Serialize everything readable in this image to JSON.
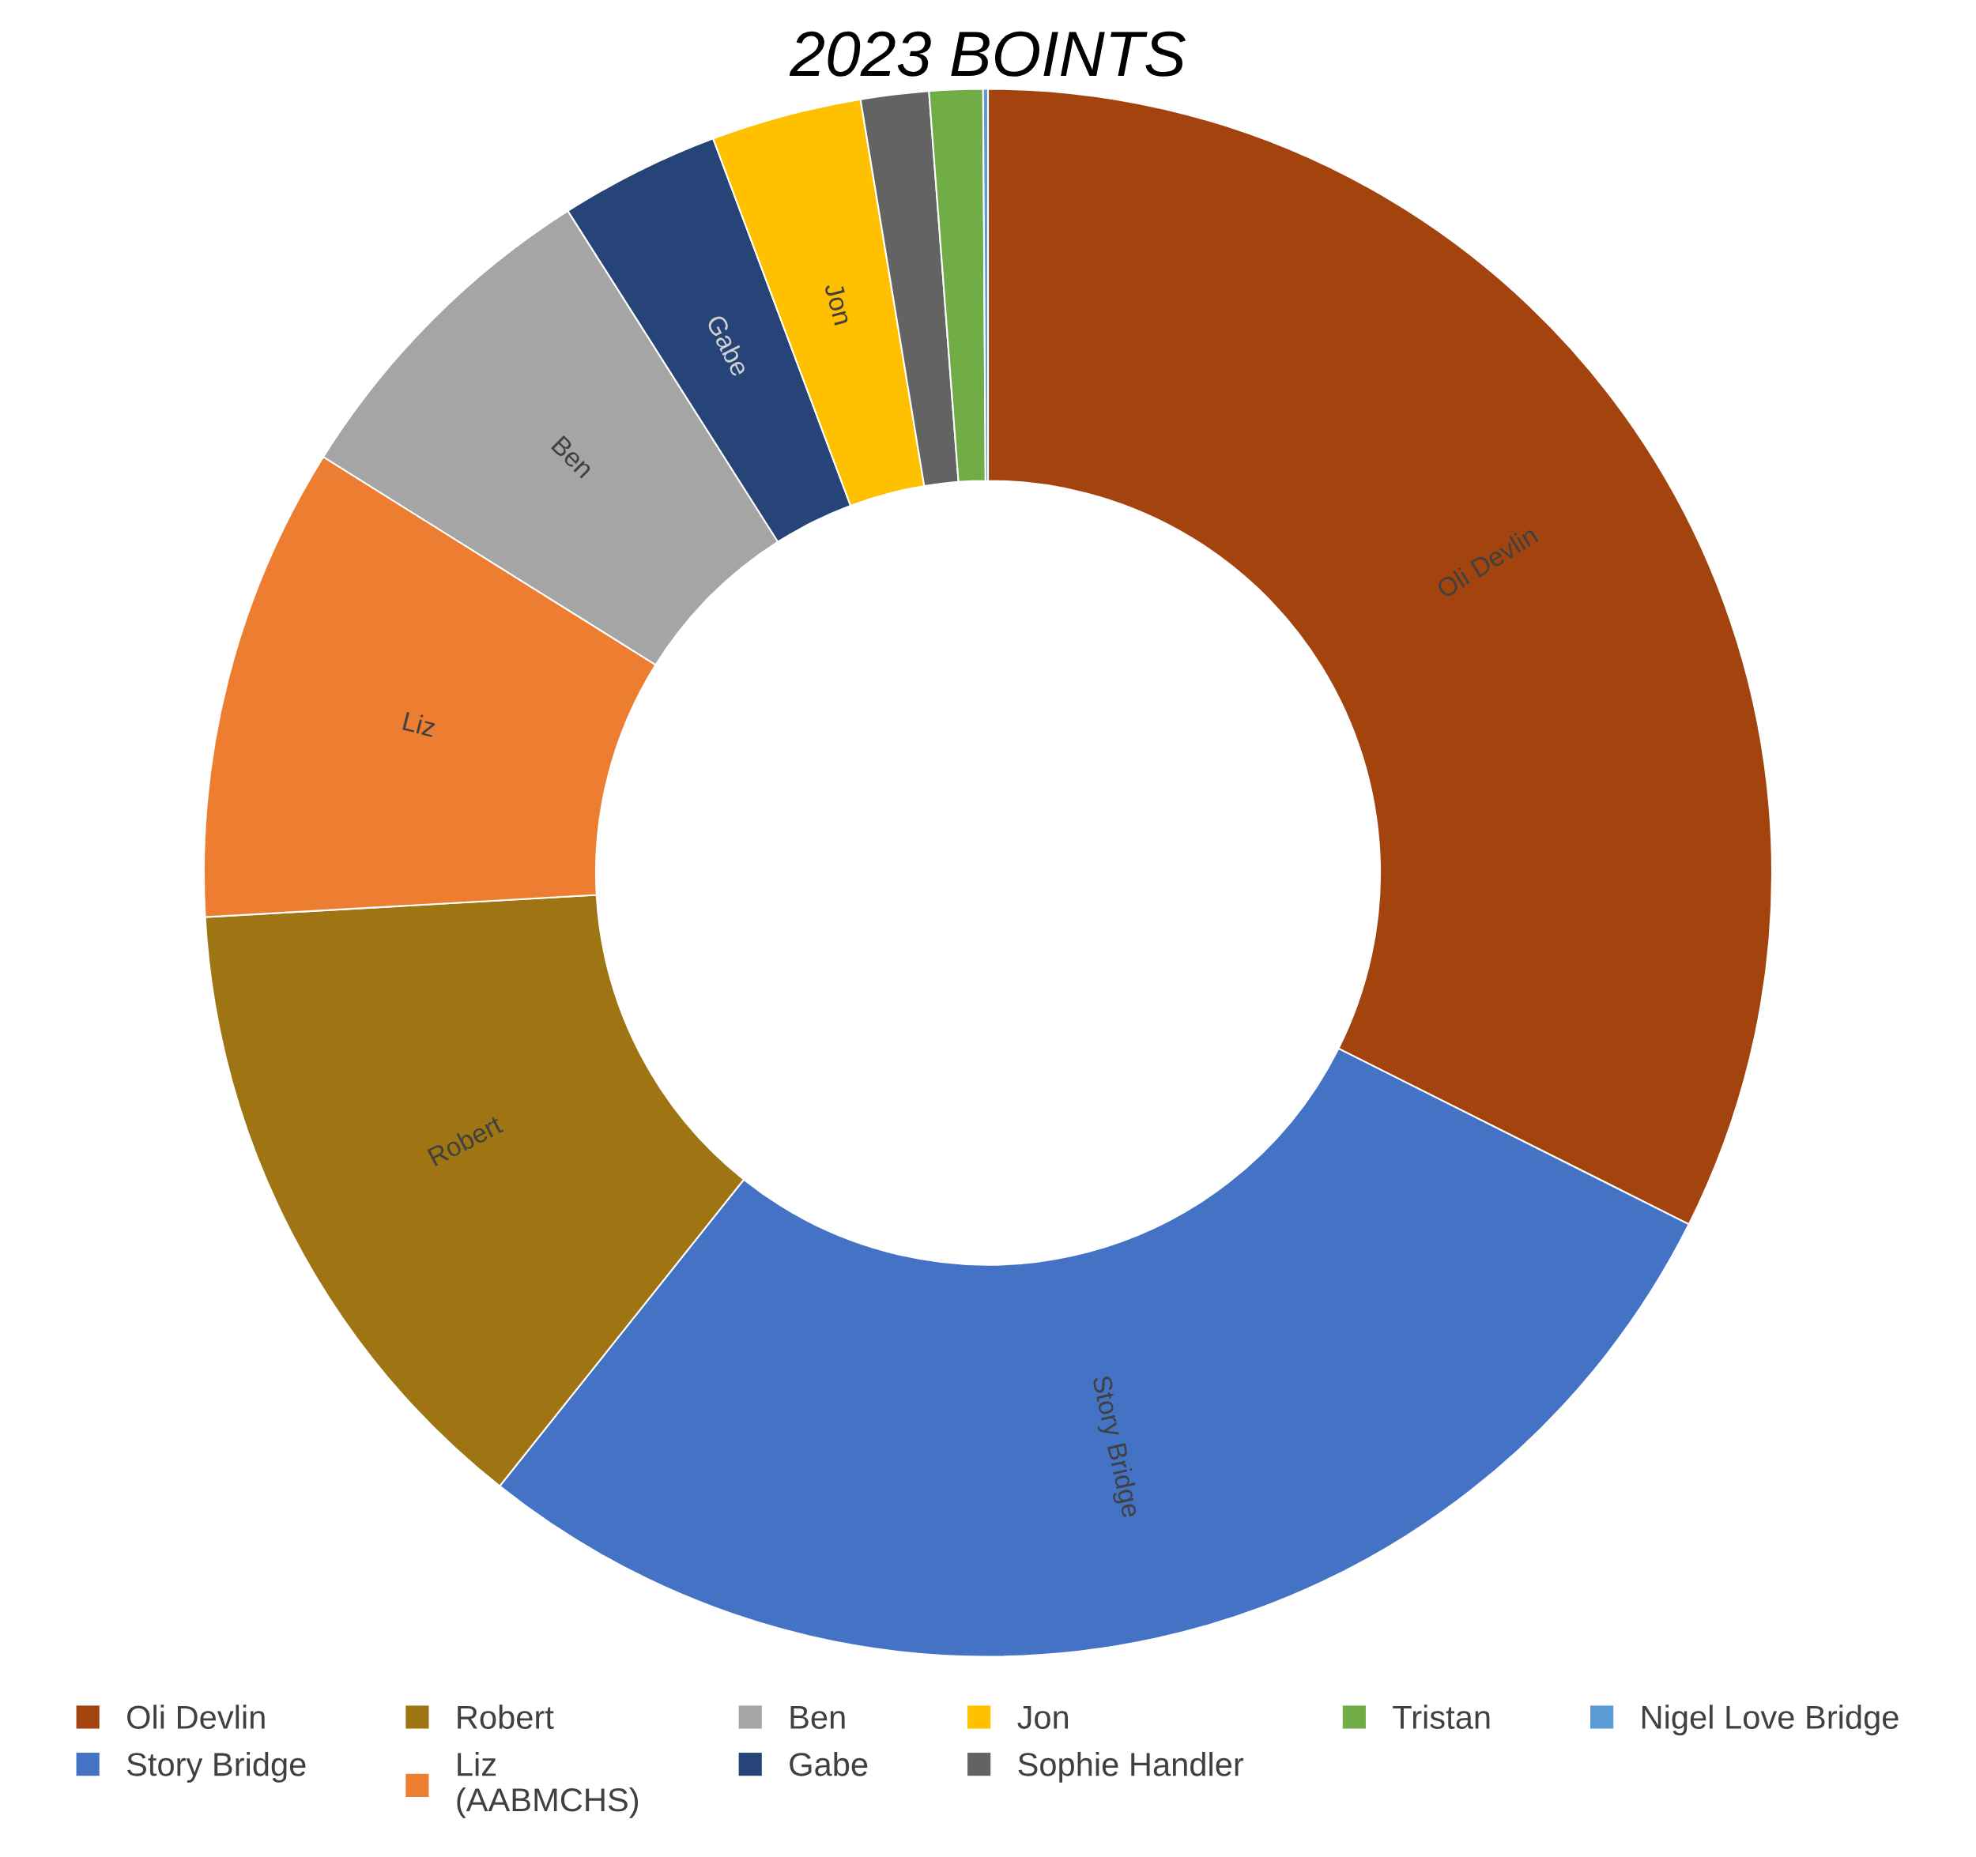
{
  "chart_data": {
    "type": "donut",
    "title": "2023 BOINTS",
    "categories": [
      "Oli Devlin",
      "Story Bridge",
      "Robert",
      "Liz\n(AABMCHS)",
      "Ben",
      "Gabe",
      "Jon",
      "Sophie Handler",
      "Tristan",
      "Nigel Love Bridge"
    ],
    "values": [
      32.4,
      28.3,
      13.4,
      9.8,
      7.1,
      3.3,
      3.1,
      1.4,
      1.1,
      0.1
    ],
    "colors": [
      "#a3440f",
      "#4472c4",
      "#9e7512",
      "#ed7d31",
      "#a5a5a5",
      "#264478",
      "#ffc000",
      "#636363",
      "#70ad47",
      "#5b9bd5"
    ],
    "value_labels": [
      "Oli Devlin",
      "Story Bridge",
      "Robert",
      "Liz",
      "Ben",
      "Gabe",
      "Jon",
      null,
      null,
      null
    ],
    "legend": "bottom"
  }
}
